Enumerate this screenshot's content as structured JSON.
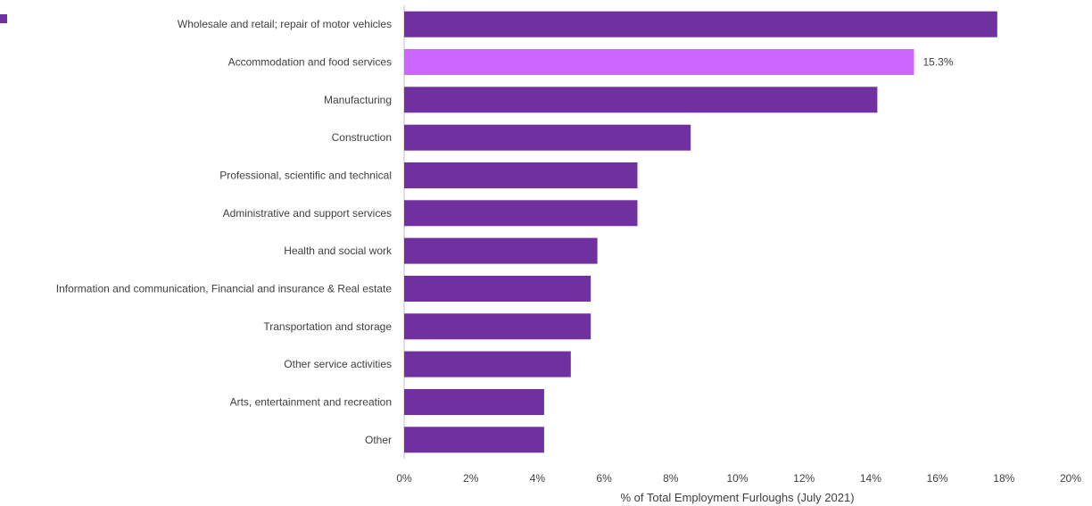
{
  "chart_data": {
    "type": "bar",
    "orientation": "horizontal",
    "xlabel": "% of Total Employment Furloughs (July 2021)",
    "ylabel": "",
    "xlim": [
      0,
      20
    ],
    "x_ticks": [
      "0%",
      "2%",
      "4%",
      "6%",
      "8%",
      "10%",
      "12%",
      "14%",
      "16%",
      "18%",
      "20%"
    ],
    "grid": false,
    "legend": "top-left",
    "legend_entries": [
      ""
    ],
    "colors": {
      "primary": "#7030A0",
      "highlight": "#CC66FF"
    },
    "highlight_category": "Accommodation and food services",
    "categories": [
      "Wholesale and retail; repair of motor vehicles",
      "Accommodation and food services",
      "Manufacturing",
      "Construction",
      "Professional, scientific and technical",
      "Administrative and support services",
      "Health and social work",
      "Information and communication, Financial and insurance & Real estate",
      "Transportation and storage",
      "Other service activities",
      "Arts, entertainment and recreation",
      "Other"
    ],
    "values": [
      17.8,
      15.3,
      14.2,
      8.6,
      7.0,
      7.0,
      5.8,
      5.6,
      5.6,
      5.0,
      4.2,
      4.2
    ],
    "data_labels": [
      {
        "category": "Accommodation and food services",
        "text": "15.3%"
      }
    ]
  }
}
